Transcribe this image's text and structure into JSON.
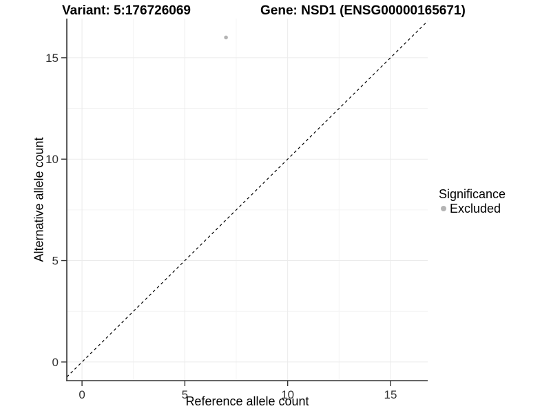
{
  "title": {
    "variant": "Variant: 5:176726069",
    "gene": "Gene: NSD1 (ENSG00000165671)"
  },
  "chart_data": {
    "type": "scatter",
    "title": "Variant: 5:176726069    Gene: NSD1 (ENSG00000165671)",
    "xlabel": "Reference allele count",
    "ylabel": "Alternative allele count",
    "xlim": [
      -0.74,
      16.81
    ],
    "ylim": [
      -0.92,
      16.93
    ],
    "x_major_ticks": [
      0,
      5,
      10,
      15
    ],
    "y_major_ticks": [
      0,
      5,
      10,
      15
    ],
    "x_minor_ticks": [
      2.5,
      7.5,
      12.5
    ],
    "y_minor_ticks": [
      2.5,
      7.5,
      12.5
    ],
    "grid": true,
    "series": [
      {
        "name": "Excluded",
        "color": "#b4b4b4",
        "points": [
          {
            "x": 7,
            "y": 16
          }
        ]
      }
    ],
    "reference_line": {
      "type": "identity",
      "style": "dashed",
      "color": "#000000"
    },
    "legend": {
      "title": "Significance",
      "position": "right",
      "entries": [
        {
          "label": "Excluded",
          "color": "#b4b4b4",
          "marker": "circle"
        }
      ]
    },
    "colors": {
      "background": "#ffffff",
      "grid_major": "#ebebeb",
      "grid_minor": "#f4f4f4",
      "axis_line": "#333333",
      "tick_label": "#333333",
      "point": "#b4b4b4",
      "reference_line": "#000000"
    }
  }
}
